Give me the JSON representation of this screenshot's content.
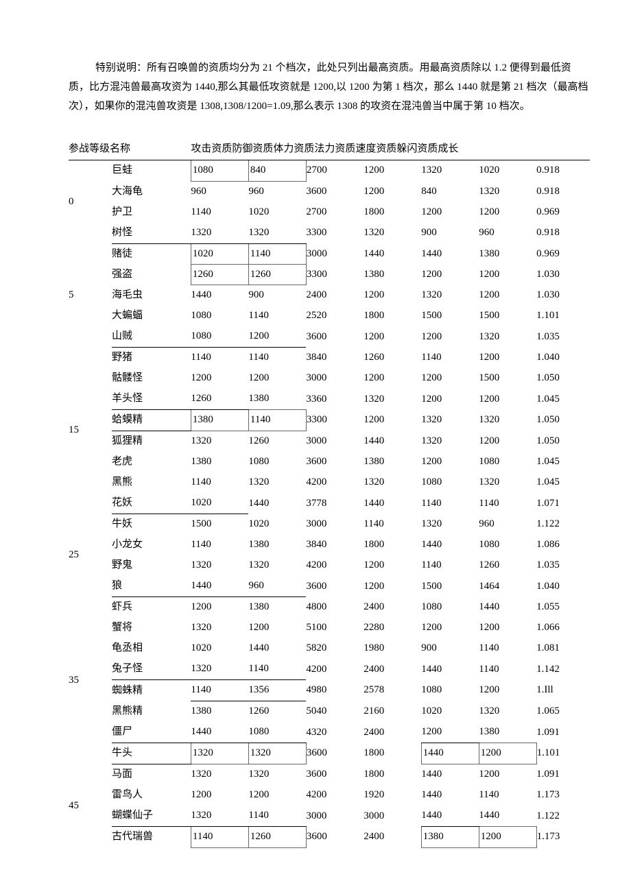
{
  "intro": "特别说明：所有召唤兽的资质均分为 21 个档次，此处只列出最高资质。用最高资质除以 1.2 便得到最低资质，比方混沌兽最高攻资为 1440,那么其最低攻资就是 1200,以 1200 为第 1 档次，那么 1440 就是第 21 档次（最高档次），如果你的混沌兽攻资是 1308,1308/1200=1.09,那么表示 1308 的攻资在混沌兽当中属于第 10 档次。",
  "headers": {
    "level": "参战等级名称",
    "cols": "攻击资质防御资质体力资质法力资质速度资质躲闪资质成长"
  },
  "groups": [
    {
      "level": "0",
      "rows": [
        {
          "name": "巨蛙",
          "v": [
            "1080",
            "840",
            "2700",
            "1200",
            "1320",
            "1020",
            "0.918"
          ],
          "box_cols": [
            0,
            1
          ],
          "under_name": false
        },
        {
          "name": "大海龟",
          "v": [
            "960",
            "960",
            "3600",
            "1200",
            "840",
            "1320",
            "0.918"
          ]
        },
        {
          "name": "护卫",
          "v": [
            "1140",
            "1020",
            "2700",
            "1800",
            "1200",
            "1200",
            "0.969"
          ]
        },
        {
          "name": "树怪",
          "v": [
            "1320",
            "1320",
            "3300",
            "1320",
            "900",
            "960",
            "0.918"
          ],
          "under_name": true,
          "under_cols": [
            0,
            1
          ]
        }
      ]
    },
    {
      "level": "5",
      "rows": [
        {
          "name": "赌徒",
          "v": [
            "1020",
            "1140",
            "3000",
            "1440",
            "1440",
            "1380",
            "0.969"
          ],
          "box_cols": [
            0,
            1
          ]
        },
        {
          "name": "强盗",
          "v": [
            "1260",
            "1260",
            "3300",
            "1380",
            "1200",
            "1200",
            "1.030"
          ],
          "box_cols": [
            0,
            1
          ]
        },
        {
          "name": "海毛虫",
          "v": [
            "1440",
            "900",
            "2400",
            "1200",
            "1320",
            "1200",
            "1.030"
          ]
        },
        {
          "name": "大蝙蝠",
          "v": [
            "1080",
            "1140",
            "2520",
            "1800",
            "1500",
            "1500",
            "1.101"
          ]
        },
        {
          "name": "山贼",
          "v": [
            "1080",
            "1200",
            "3600",
            "1200",
            "1200",
            "1320",
            "1.035"
          ],
          "under_name": true,
          "under_cols": [
            0,
            1
          ]
        }
      ]
    },
    {
      "level": "15",
      "rows": [
        {
          "name": "野猪",
          "v": [
            "1140",
            "1140",
            "3840",
            "1260",
            "1140",
            "1200",
            "1.040"
          ]
        },
        {
          "name": "骷髅怪",
          "v": [
            "1200",
            "1200",
            "3000",
            "1200",
            "1200",
            "1500",
            "1.050"
          ]
        },
        {
          "name": "羊头怪",
          "v": [
            "1260",
            "1380",
            "3360",
            "1320",
            "1200",
            "1200",
            "1.045"
          ],
          "under_name": true,
          "under_cols": [
            0
          ]
        },
        {
          "name": "蛤蟆精",
          "v": [
            "1380",
            "1140",
            "3300",
            "1200",
            "1320",
            "1320",
            "1.050"
          ],
          "box_cols": [
            0,
            1
          ],
          "under_name": true
        },
        {
          "name": "狐狸精",
          "v": [
            "1320",
            "1260",
            "3000",
            "1440",
            "1320",
            "1200",
            "1.050"
          ]
        },
        {
          "name": "老虎",
          "v": [
            "1380",
            "1080",
            "3600",
            "1380",
            "1200",
            "1080",
            "1.045"
          ]
        },
        {
          "name": "黑熊",
          "v": [
            "1140",
            "1320",
            "4200",
            "1320",
            "1080",
            "1320",
            "1.045"
          ]
        },
        {
          "name": "花妖",
          "v": [
            "1020",
            "1440",
            "3778",
            "1440",
            "1140",
            "1140",
            "1.071"
          ],
          "under_name": true,
          "under_cols": [
            0
          ]
        }
      ]
    },
    {
      "level": "25",
      "rows": [
        {
          "name": "牛妖",
          "v": [
            "1500",
            "1020",
            "3000",
            "1140",
            "1320",
            "960",
            "1.122"
          ]
        },
        {
          "name": "小龙女",
          "v": [
            "1140",
            "1380",
            "3840",
            "1800",
            "1440",
            "1080",
            "1.086"
          ]
        },
        {
          "name": "野鬼",
          "v": [
            "1320",
            "1320",
            "4200",
            "1200",
            "1140",
            "1260",
            "1.035"
          ]
        },
        {
          "name": "狼",
          "v": [
            "1440",
            "960",
            "3600",
            "1200",
            "1500",
            "1464",
            "1.040"
          ],
          "under_name": true,
          "under_cols": [
            0,
            1
          ]
        }
      ]
    },
    {
      "level": "35",
      "rows": [
        {
          "name": "虾兵",
          "v": [
            "1200",
            "1380",
            "4800",
            "2400",
            "1080",
            "1440",
            "1.055"
          ]
        },
        {
          "name": "蟹将",
          "v": [
            "1320",
            "1200",
            "5100",
            "2280",
            "1200",
            "1200",
            "1.066"
          ]
        },
        {
          "name": "龟丞相",
          "v": [
            "1020",
            "1440",
            "5820",
            "1980",
            "900",
            "1140",
            "1.081"
          ]
        },
        {
          "name": "兔子怪",
          "v": [
            "1320",
            "1140",
            "4200",
            "2400",
            "1440",
            "1140",
            "1.142"
          ],
          "under_name": true,
          "under_cols": [
            0,
            1
          ]
        },
        {
          "name": "蜘蛛精",
          "v": [
            "1140",
            "1356",
            "4980",
            "2578",
            "1080",
            "1200",
            "1.Ill"
          ],
          "under_cols": [
            0,
            1
          ]
        },
        {
          "name": "黑熊精",
          "v": [
            "1380",
            "1260",
            "5040",
            "2160",
            "1020",
            "1320",
            "1.065"
          ]
        },
        {
          "name": "僵尸",
          "v": [
            "1440",
            "1080",
            "4320",
            "2400",
            "1200",
            "1380",
            "1.091"
          ],
          "under_name": true,
          "under_cols": [
            0,
            1,
            4
          ]
        },
        {
          "name": "牛头",
          "v": [
            "1320",
            "1320",
            "3600",
            "1800",
            "1440",
            "1200",
            "1.101"
          ],
          "box_cols": [
            0,
            1,
            4,
            5
          ],
          "under_name": true
        }
      ]
    },
    {
      "level": "45",
      "rows": [
        {
          "name": "马面",
          "v": [
            "1320",
            "1320",
            "3600",
            "1800",
            "1440",
            "1200",
            "1.091"
          ]
        },
        {
          "name": "雷鸟人",
          "v": [
            "1200",
            "1200",
            "4200",
            "1920",
            "1440",
            "1140",
            "1.173"
          ]
        },
        {
          "name": "蝴蝶仙子",
          "v": [
            "1320",
            "1140",
            "3000",
            "3000",
            "1440",
            "1440",
            "1.122"
          ],
          "under_name": true,
          "under_cols": [
            0,
            1,
            4
          ]
        },
        {
          "name": "古代瑞兽",
          "v": [
            "1140",
            "1260",
            "3600",
            "2400",
            "1380",
            "1200",
            "1.173"
          ],
          "box_cols": [
            0,
            1,
            4,
            5
          ]
        }
      ]
    }
  ]
}
